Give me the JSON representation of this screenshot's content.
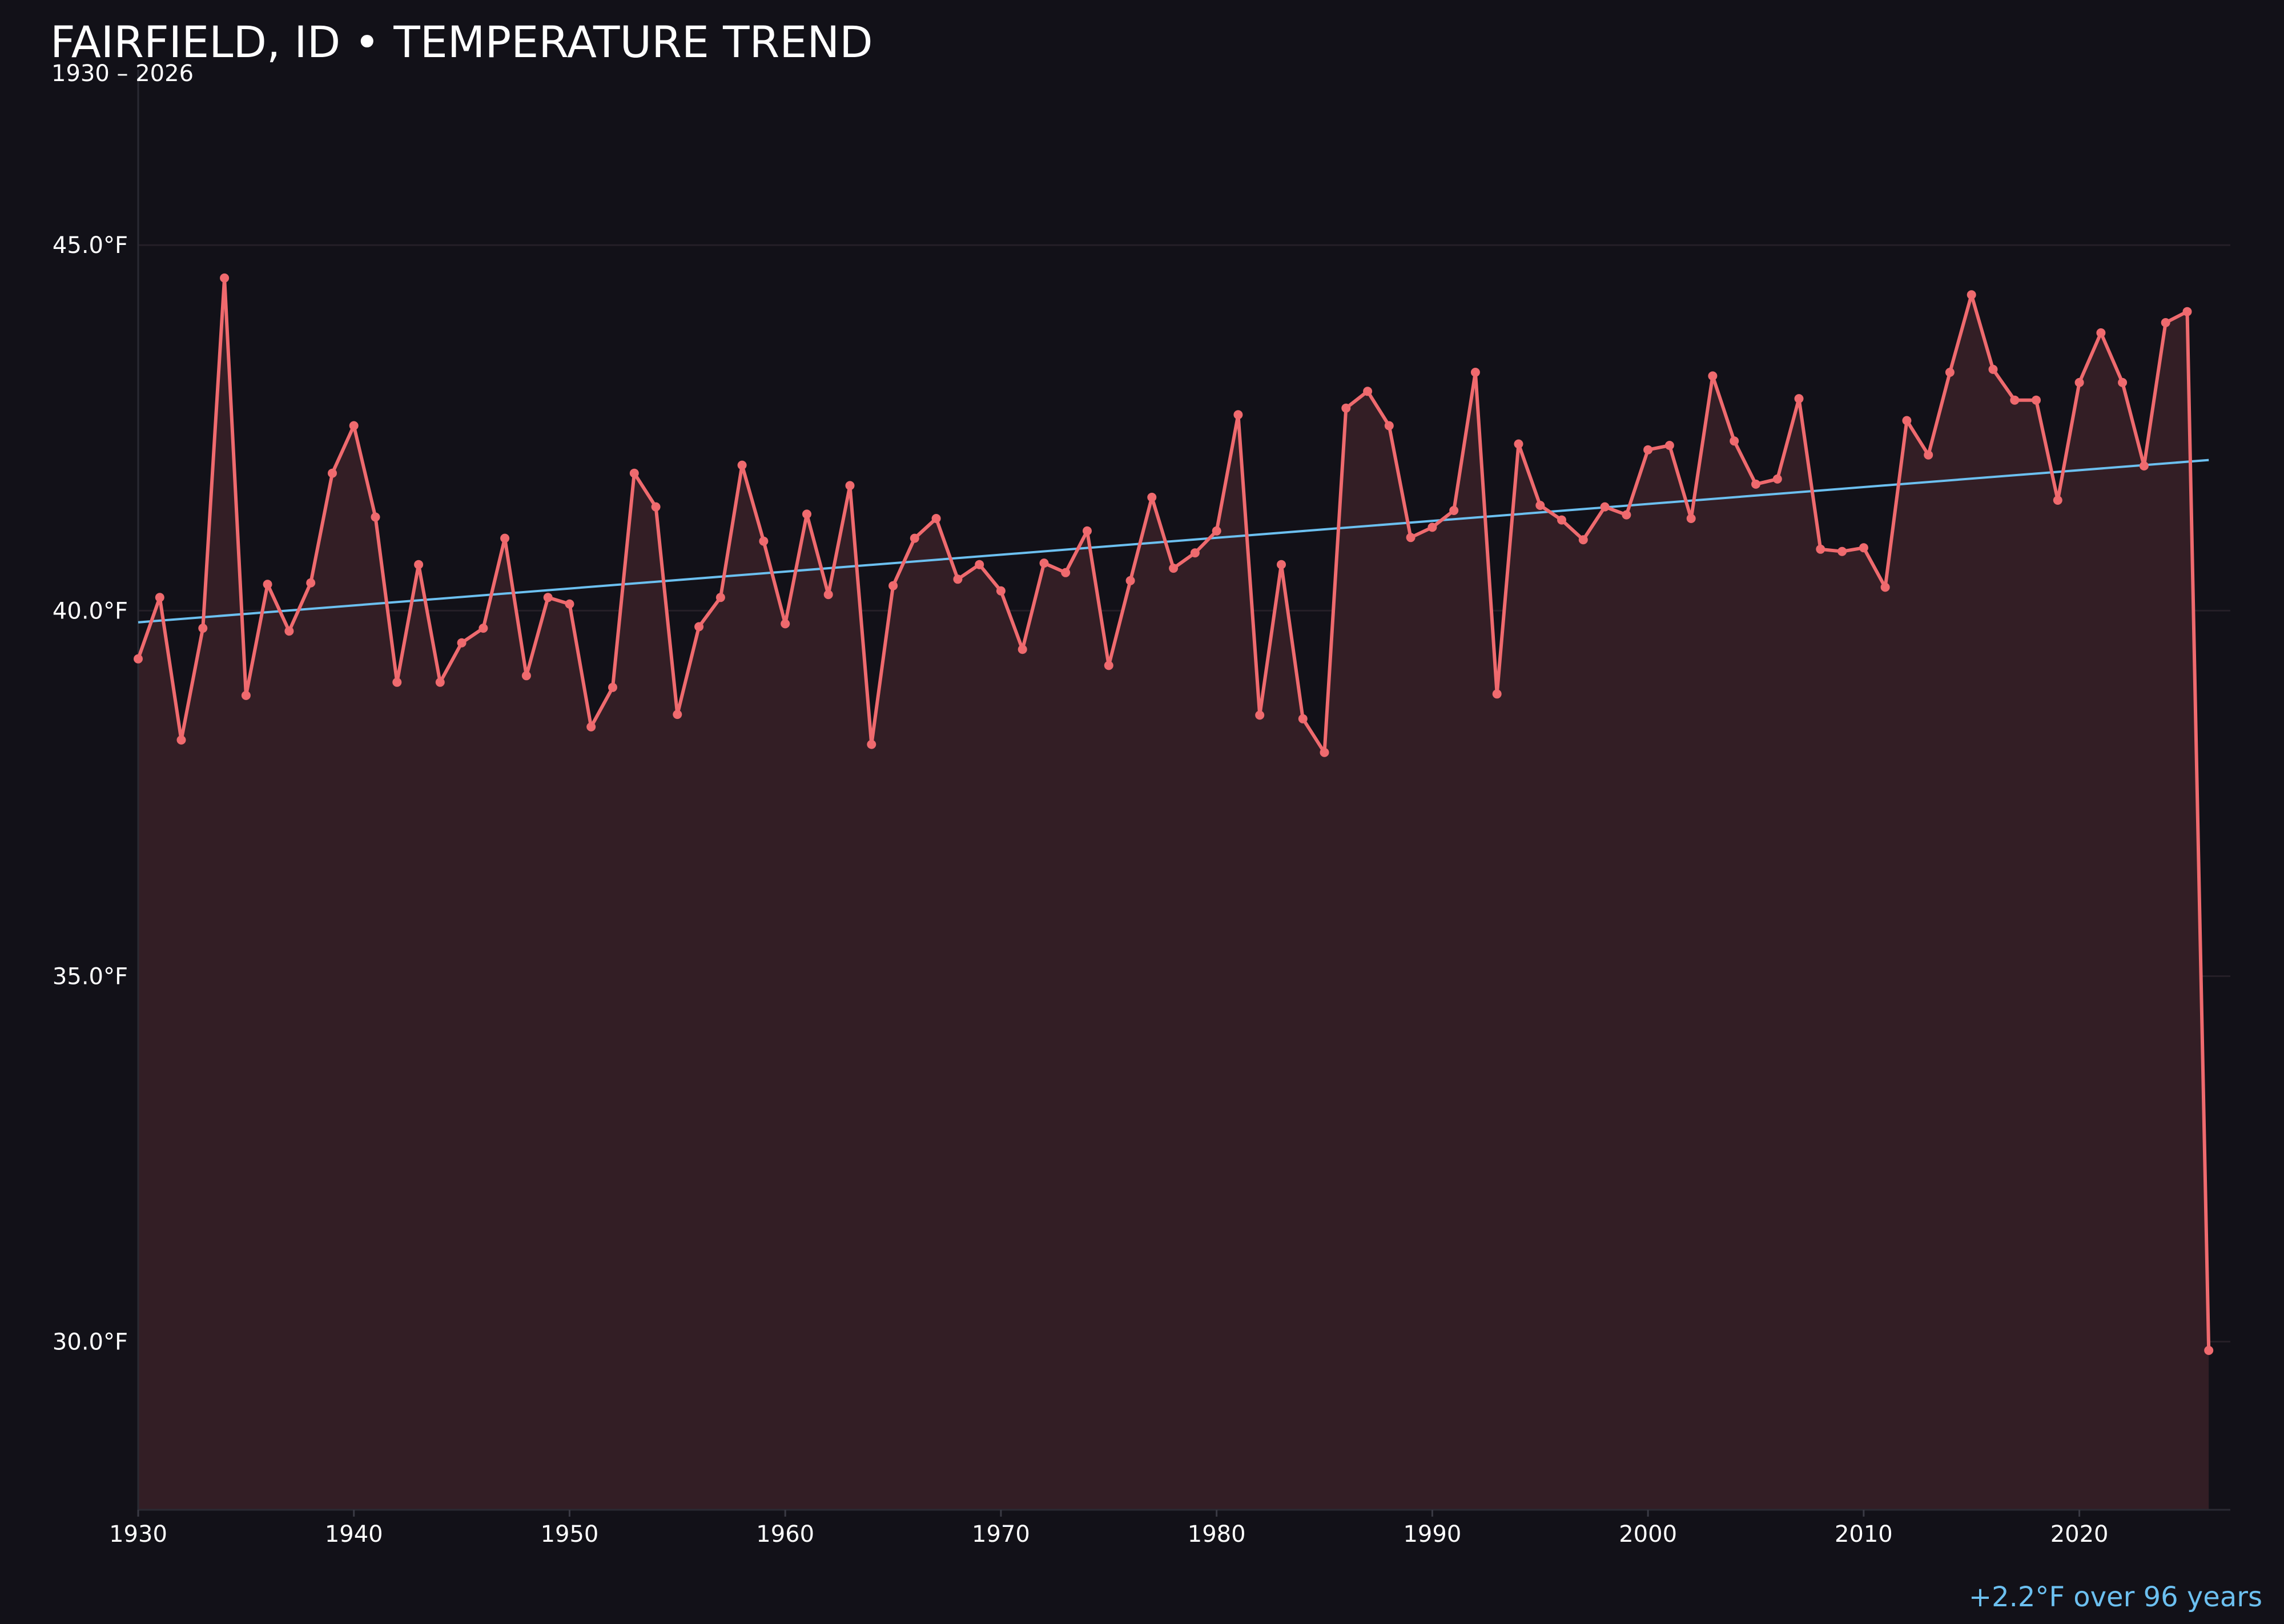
{
  "chart_data": {
    "type": "line",
    "title": "FAIRFIELD, ID • TEMPERATURE TREND",
    "subtitle": "1930 – 2026",
    "annotation": "+2.2°F over 96 years",
    "xlim": [
      1930,
      2027
    ],
    "ylim": [
      27.7,
      47.4
    ],
    "x_ticks": [
      1930,
      1940,
      1950,
      1960,
      1970,
      1980,
      1990,
      2000,
      2010,
      2020
    ],
    "x_tick_labels": [
      "1930",
      "1940",
      "1950",
      "1960",
      "1970",
      "1980",
      "1990",
      "2000",
      "2010",
      "2020"
    ],
    "y_ticks": [
      30,
      35,
      40,
      45
    ],
    "y_tick_labels": [
      "30.0°F",
      "35.0°F",
      "40.0°F",
      "45.0°F"
    ],
    "grid": "horizontal",
    "colors": {
      "background": "#121118",
      "series": "#ef6a6e",
      "area": "#331e25",
      "trend": "#6cc0f0",
      "grid": "#251f27",
      "annotation": "#6cc0f0"
    },
    "series": [
      {
        "x": [
          1930,
          1931,
          1932,
          1933,
          1934,
          1935,
          1936,
          1937,
          1938,
          1939,
          1940,
          1941,
          1942,
          1943,
          1944,
          1945,
          1946,
          1947,
          1948,
          1949,
          1950,
          1951,
          1952,
          1953,
          1954,
          1955,
          1956,
          1957,
          1958,
          1959,
          1960,
          1961,
          1962,
          1963,
          1964,
          1965,
          1966,
          1967,
          1968,
          1969,
          1970,
          1971,
          1972,
          1973,
          1974,
          1975,
          1976,
          1977,
          1978,
          1979,
          1980,
          1981,
          1982,
          1983,
          1984,
          1985,
          1986,
          1987,
          1988,
          1989,
          1990,
          1991,
          1992,
          1993,
          1994,
          1995,
          1996,
          1997,
          1998,
          1999,
          2000,
          2001,
          2002,
          2003,
          2004,
          2005,
          2006,
          2007,
          2008,
          2009,
          2010,
          2011,
          2012,
          2013,
          2014,
          2015,
          2016,
          2017,
          2018,
          2019,
          2020,
          2021,
          2022,
          2023,
          2024,
          2025,
          2026
        ],
        "y": [
          39.34,
          40.18,
          38.23,
          39.76,
          44.55,
          38.84,
          40.36,
          39.72,
          40.38,
          41.88,
          42.53,
          41.28,
          39.02,
          40.63,
          39.02,
          39.56,
          39.76,
          40.99,
          39.11,
          40.18,
          40.09,
          38.41,
          38.95,
          41.88,
          41.42,
          38.58,
          39.78,
          40.18,
          41.99,
          40.95,
          39.82,
          41.32,
          40.22,
          41.71,
          38.17,
          40.34,
          40.99,
          41.26,
          40.43,
          40.63,
          40.27,
          39.47,
          40.65,
          40.52,
          41.09,
          39.25,
          40.41,
          41.55,
          40.58,
          40.79,
          41.09,
          42.68,
          38.57,
          40.63,
          38.52,
          38.06,
          42.77,
          43.0,
          42.53,
          41.0,
          41.14,
          41.37,
          43.26,
          38.86,
          42.28,
          41.44,
          41.24,
          40.97,
          41.42,
          41.31,
          42.2,
          42.26,
          41.26,
          43.21,
          42.32,
          41.73,
          41.8,
          42.9,
          40.84,
          40.81,
          40.86,
          40.32,
          42.6,
          42.13,
          43.26,
          44.32,
          43.3,
          42.88,
          42.88,
          41.51,
          43.12,
          43.8,
          43.12,
          41.98,
          43.94,
          44.09,
          29.88
        ]
      }
    ],
    "trend": {
      "x": [
        1930,
        2026
      ],
      "y": [
        39.84,
        42.06
      ]
    }
  }
}
